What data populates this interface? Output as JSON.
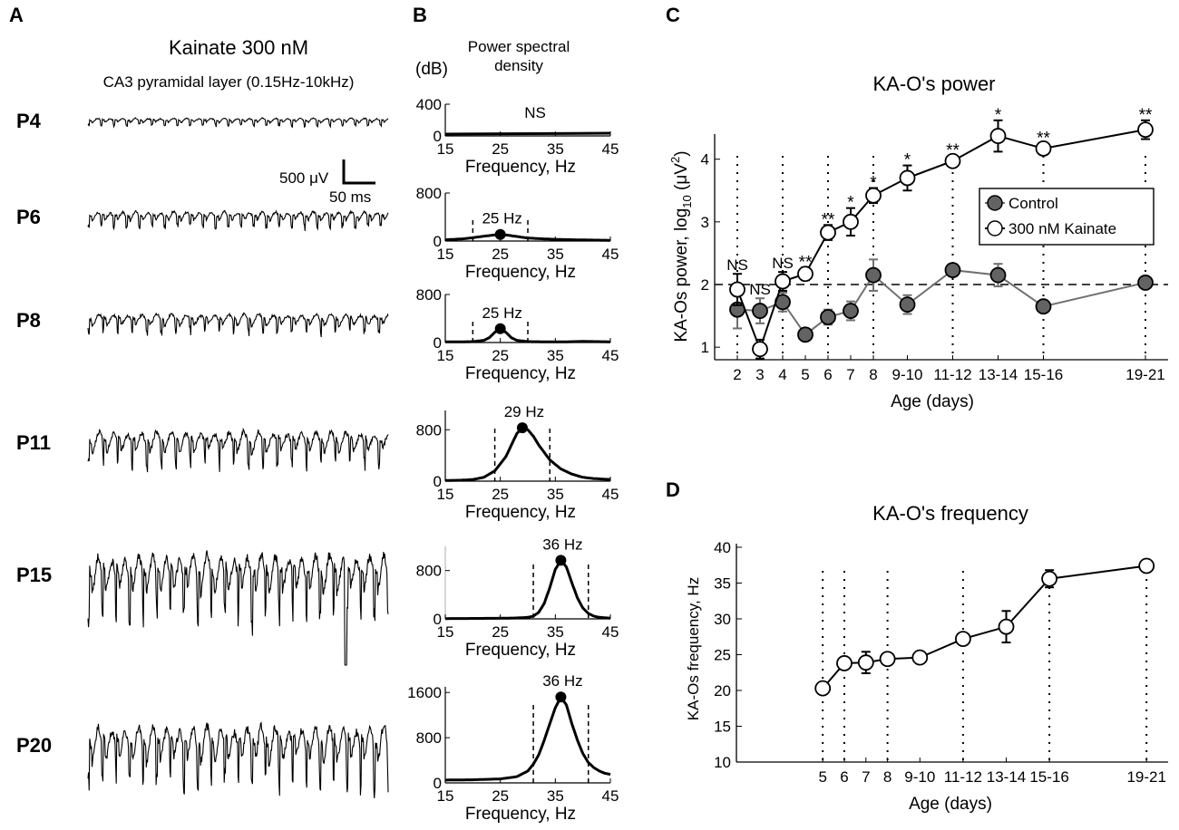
{
  "panels": {
    "A": {
      "letter": "A",
      "title": "Kainate 300 nM",
      "subtitle": "CA3 pyramidal layer (0.15Hz-10kHz)",
      "scale_bar": {
        "amplitude_label": "500 μV",
        "time_label": "50 ms"
      },
      "rows": [
        {
          "label": "P4",
          "amplitude": 0.12
        },
        {
          "label": "P6",
          "amplitude": 0.25
        },
        {
          "label": "P8",
          "amplitude": 0.3
        },
        {
          "label": "P11",
          "amplitude": 0.55
        },
        {
          "label": "P15",
          "amplitude": 1.0
        },
        {
          "label": "P20",
          "amplitude": 0.95
        }
      ]
    },
    "B": {
      "letter": "B",
      "header": {
        "line1": "Power spectral",
        "line2": "density"
      },
      "unit_label": "(dB)",
      "x_label": "Frequency, Hz",
      "x_ticks": [
        "15",
        "25",
        "35",
        "45"
      ]
    },
    "C": {
      "letter": "C"
    },
    "D": {
      "letter": "D"
    }
  },
  "chart_data": [
    {
      "type": "line",
      "panel": "B-P4",
      "xlabel": "Frequency, Hz",
      "xlim": [
        15,
        45
      ],
      "ylim": [
        0,
        400
      ],
      "y_ticks": [
        "400",
        "0"
      ],
      "peak": null,
      "annotation": "NS",
      "band": null
    },
    {
      "type": "line",
      "panel": "B-P6",
      "xlabel": "Frequency, Hz",
      "xlim": [
        15,
        45
      ],
      "ylim": [
        0,
        800
      ],
      "y_ticks": [
        "800",
        "0"
      ],
      "peak": {
        "x": 25,
        "y": 110
      },
      "annotation": "25 Hz",
      "band": [
        20,
        30
      ],
      "curve": {
        "x": [
          15,
          18,
          20,
          22,
          24,
          25,
          26,
          28,
          30,
          33,
          36,
          40,
          45
        ],
        "y": [
          20,
          35,
          55,
          80,
          102,
          110,
          102,
          75,
          50,
          35,
          25,
          18,
          12
        ]
      }
    },
    {
      "type": "line",
      "panel": "B-P8",
      "xlabel": "Frequency, Hz",
      "xlim": [
        15,
        45
      ],
      "ylim": [
        0,
        800
      ],
      "y_ticks": [
        "800",
        "0"
      ],
      "peak": {
        "x": 25,
        "y": 230
      },
      "annotation": "25 Hz",
      "band": [
        20,
        30
      ],
      "curve": {
        "x": [
          15,
          18,
          20,
          22,
          23,
          24,
          25,
          26,
          27,
          28,
          30,
          33,
          37,
          40,
          45
        ],
        "y": [
          10,
          12,
          15,
          35,
          80,
          170,
          230,
          170,
          80,
          35,
          15,
          12,
          12,
          18,
          12
        ]
      }
    },
    {
      "type": "line",
      "panel": "B-P11",
      "xlabel": "Frequency, Hz",
      "xlim": [
        15,
        45
      ],
      "ylim": [
        0,
        1100
      ],
      "y_ticks": [
        "800",
        "0"
      ],
      "peak": {
        "x": 29,
        "y": 830
      },
      "annotation": "29 Hz",
      "band": [
        24,
        34
      ],
      "curve": {
        "x": [
          15,
          18,
          20,
          22,
          24,
          26,
          27,
          28,
          29,
          30,
          31,
          32,
          34,
          36,
          38,
          40,
          42,
          45
        ],
        "y": [
          10,
          15,
          25,
          60,
          160,
          380,
          560,
          740,
          830,
          800,
          700,
          560,
          330,
          190,
          110,
          60,
          40,
          25
        ]
      }
    },
    {
      "type": "line",
      "panel": "B-P15",
      "xlabel": "Frequency, Hz",
      "xlim": [
        15,
        45
      ],
      "ylim": [
        0,
        1200
      ],
      "y_ticks": [
        "800",
        "0"
      ],
      "peak": {
        "x": 36,
        "y": 970
      },
      "annotation": "36 Hz",
      "band": [
        31,
        41
      ],
      "curve": {
        "x": [
          15,
          20,
          25,
          28,
          30,
          31,
          32,
          33,
          34,
          35,
          36,
          37,
          38,
          39,
          40,
          41,
          42,
          43,
          45
        ],
        "y": [
          5,
          7,
          10,
          15,
          25,
          45,
          110,
          260,
          520,
          820,
          970,
          860,
          600,
          350,
          180,
          90,
          45,
          25,
          12
        ]
      }
    },
    {
      "type": "line",
      "panel": "B-P20",
      "xlabel": "Frequency, Hz",
      "xlim": [
        15,
        45
      ],
      "ylim": [
        0,
        1700
      ],
      "y_ticks": [
        "1600",
        "800",
        "0"
      ],
      "peak": {
        "x": 36,
        "y": 1520
      },
      "annotation": "36 Hz",
      "band": [
        31,
        41
      ],
      "curve": {
        "x": [
          15,
          20,
          25,
          28,
          30,
          31,
          32,
          33,
          34,
          35,
          36,
          37,
          38,
          39,
          40,
          41,
          42,
          43,
          44,
          45
        ],
        "y": [
          50,
          55,
          70,
          110,
          210,
          330,
          500,
          760,
          1050,
          1330,
          1520,
          1380,
          1050,
          760,
          520,
          360,
          270,
          210,
          170,
          150
        ]
      }
    },
    {
      "type": "line",
      "panel": "C",
      "title": "KA-O's power",
      "xlabel": "Age (days)",
      "ylabel": "KA-Os power, log10 (μV²)",
      "ylabel_main": "KA-Os power, log",
      "ylabel_sub": "10",
      "ylabel_unit": " (μV",
      "ylabel_sup": "2",
      "ylabel_close": ")",
      "ylim": [
        0.8,
        4.4
      ],
      "y_ticks": [
        "1",
        "2",
        "3",
        "4"
      ],
      "categories": [
        "2",
        "3",
        "4",
        "5",
        "6",
        "7",
        "8",
        "9-10",
        "11-12",
        "13-14",
        "15-16",
        "19-21"
      ],
      "category_positions": [
        2,
        3,
        4,
        5,
        6,
        7,
        8,
        9.5,
        11.5,
        13.5,
        15.5,
        20
      ],
      "xlim": [
        1,
        21
      ],
      "dotted_positions": [
        2,
        4,
        6,
        8,
        11.5,
        15.5,
        20
      ],
      "reference_line": 2,
      "legend": {
        "position": "top-right",
        "entries": [
          "Control",
          "300 nM Kainate"
        ]
      },
      "series": [
        {
          "name": "Control",
          "color": "#636363",
          "line_color": "#707070",
          "values": [
            1.6,
            1.58,
            1.72,
            1.2,
            1.48,
            1.58,
            2.15,
            1.68,
            2.23,
            2.15,
            1.65,
            2.03
          ],
          "errors": [
            0.3,
            0.2,
            0.15,
            0.08,
            0.12,
            0.15,
            0.25,
            0.15,
            0.1,
            0.18,
            0.08,
            0.08
          ]
        },
        {
          "name": "300 nM Kainate",
          "color": "#ffffff",
          "line_color": "#000000",
          "values": [
            1.92,
            0.97,
            2.05,
            2.17,
            2.83,
            3.0,
            3.42,
            3.7,
            3.97,
            4.37,
            4.17,
            4.47
          ],
          "errors": [
            0.25,
            0.15,
            0.15,
            0.1,
            0.12,
            0.22,
            0.12,
            0.2,
            0.08,
            0.25,
            0.08,
            0.15
          ]
        }
      ],
      "significance": [
        "NS",
        "NS",
        "NS",
        "**",
        "**",
        "*",
        "*",
        "*",
        "**",
        "*",
        "**",
        "**"
      ]
    },
    {
      "type": "line",
      "panel": "D",
      "title": "KA-O's frequency",
      "xlabel": "Age (days)",
      "ylabel": "KA-Os frequency, Hz",
      "ylim": [
        10,
        40.5
      ],
      "y_ticks": [
        "10",
        "15",
        "20",
        "25",
        "30",
        "35",
        "40"
      ],
      "categories": [
        "5",
        "6",
        "7",
        "8",
        "9-10",
        "11-12",
        "13-14",
        "15-16",
        "19-21"
      ],
      "category_positions": [
        5,
        6,
        7,
        8,
        9.5,
        11.5,
        13.5,
        15.5,
        20
      ],
      "xlim": [
        1,
        21
      ],
      "dotted_positions": [
        5,
        6,
        8,
        11.5,
        15.5,
        20
      ],
      "series": [
        {
          "name": "300 nM Kainate",
          "values": [
            20.3,
            23.8,
            23.9,
            24.4,
            24.6,
            27.2,
            28.9,
            35.6,
            37.4
          ],
          "errors": [
            0.8,
            0.6,
            1.5,
            0.5,
            0.5,
            0.5,
            2.2,
            1.2,
            0.4
          ]
        }
      ]
    }
  ]
}
